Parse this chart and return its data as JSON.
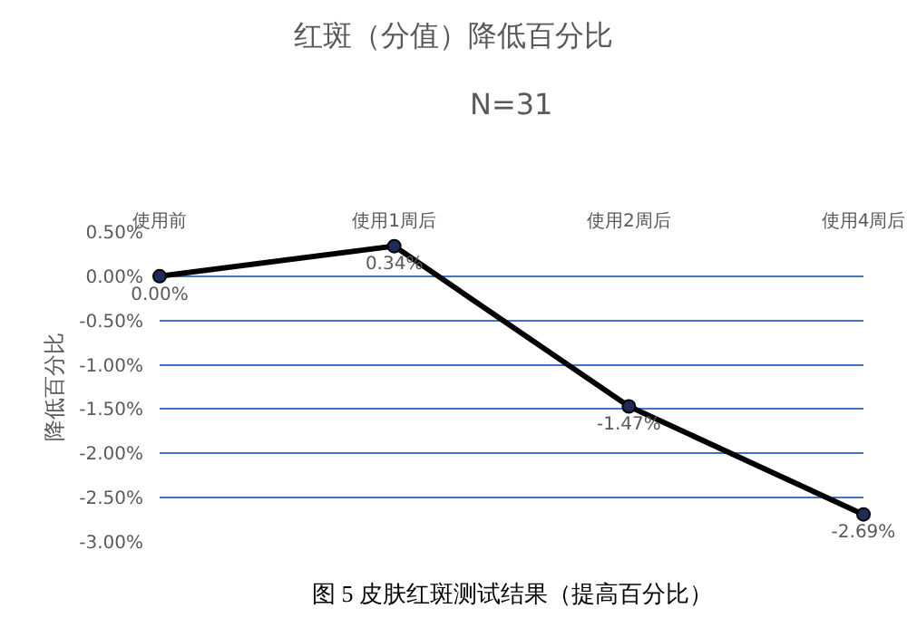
{
  "chart_data": {
    "type": "line",
    "title": "红斑（分值）降低百分比",
    "subtitle": "N=31",
    "ylabel": "降低百分比",
    "categories": [
      "使用前",
      "使用1周后",
      "使用2周后",
      "使用4周后"
    ],
    "series": [
      {
        "color": "#000000",
        "values": [
          0,
          0.34,
          -1.47,
          -2.69
        ],
        "value_labels": [
          "0.00%",
          "0.34%",
          "-1.47%",
          "-2.69%"
        ]
      }
    ],
    "ylim": [
      -3,
      0.5
    ],
    "yticks": [
      {
        "value": 0.5,
        "label": "0.50%"
      },
      {
        "value": 0,
        "label": "0.00%"
      },
      {
        "value": -0.5,
        "label": "-0.50%"
      },
      {
        "value": -1,
        "label": "-1.00%"
      },
      {
        "value": -1.5,
        "label": "-1.50%"
      },
      {
        "value": -2,
        "label": "-2.00%"
      },
      {
        "value": -2.5,
        "label": "-2.50%"
      },
      {
        "value": -3,
        "label": "-3.00%"
      }
    ],
    "grid": "y",
    "marker": "circle",
    "line_style": "solid",
    "annotations": [
      "图 5 皮肤红斑测试结果（提高百分比）"
    ]
  }
}
